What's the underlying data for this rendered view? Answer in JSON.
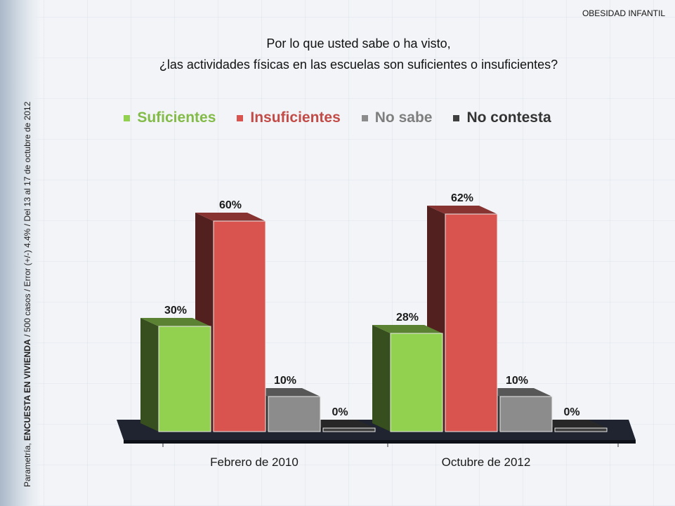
{
  "header": {
    "section": "OBESIDAD INFANTIL",
    "title_line1": "Por lo que usted sabe o ha visto,",
    "title_line2": "¿las actividades físicas en las escuelas son suficientes o insuficientes?"
  },
  "sidebar": {
    "source_prefix": "Parametría,",
    "source_bold": "ENCUESTA EN VIVIENDA",
    "source_suffix": " / 500 casos / Error (+/-) 4.4% / Del 13 al 17 de octubre de 2012"
  },
  "chart_data": {
    "type": "bar",
    "categories": [
      "Febrero de 2010",
      "Octubre de 2012"
    ],
    "series": [
      {
        "name": "Suficientes",
        "values": [
          30,
          28
        ],
        "color": "#92d050"
      },
      {
        "name": "Insuficientes",
        "values": [
          60,
          62
        ],
        "color": "#d9534f"
      },
      {
        "name": "No sabe",
        "values": [
          10,
          10
        ],
        "color": "#8c8c8c"
      },
      {
        "name": "No contesta",
        "values": [
          0,
          0
        ],
        "color": "#3f3f3f"
      }
    ],
    "data_labels": [
      [
        "30%",
        "28%"
      ],
      [
        "60%",
        "62%"
      ],
      [
        "10%",
        "10%"
      ],
      [
        "0%",
        "0%"
      ]
    ],
    "ylim": [
      0,
      70
    ],
    "legend_position": "top",
    "grid": false
  }
}
